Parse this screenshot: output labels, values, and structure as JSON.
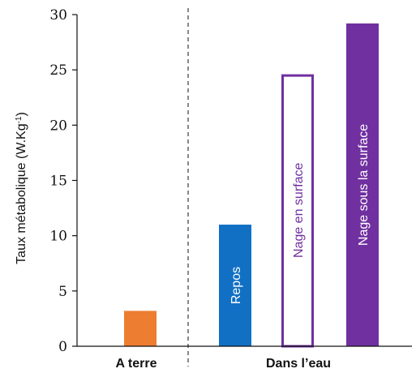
{
  "chart_data": {
    "type": "bar",
    "ylabel": "Taux métabolique (W.Kg",
    "ylabel_sup": "-1",
    "ylabel_close": ")",
    "ylim": [
      0,
      30
    ],
    "yticks": [
      0,
      5,
      10,
      15,
      20,
      25,
      30
    ],
    "grid": false,
    "groups": [
      {
        "label": "A terre"
      },
      {
        "label": "Dans l’eau"
      }
    ],
    "bars": [
      {
        "group": "A terre",
        "value": 3.2,
        "label": "",
        "fill": "#ED7D31",
        "stroke": "#ED7D31",
        "text_color": "#ffffff"
      },
      {
        "group": "Dans l’eau",
        "value": 11.0,
        "label": "Repos",
        "fill": "#1170C4",
        "stroke": "#1170C4",
        "text_color": "#ffffff"
      },
      {
        "group": "Dans l’eau",
        "value": 24.6,
        "label": "Nage en surface",
        "fill": "#ffffff",
        "stroke": "#7030A0",
        "text_color": "#7030A0"
      },
      {
        "group": "Dans l’eau",
        "value": 29.2,
        "label": "Nage sous la surface",
        "fill": "#7030A0",
        "stroke": "#7030A0",
        "text_color": "#ffffff"
      }
    ],
    "separator": "dashed"
  }
}
